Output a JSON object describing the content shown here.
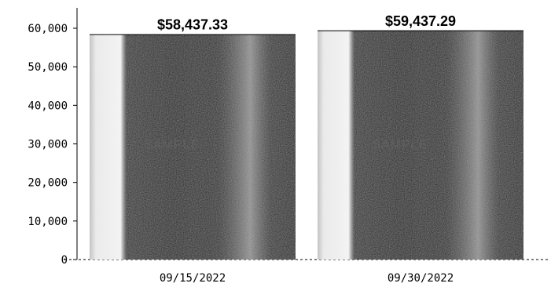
{
  "chart_data": {
    "type": "bar",
    "title": "",
    "xlabel": "",
    "ylabel": "",
    "categories": [
      "09/15/2022",
      "09/30/2022"
    ],
    "values": [
      58437.33,
      59437.29
    ],
    "data_labels": [
      "$58,437.33",
      "$59,437.29"
    ],
    "ylim": [
      0,
      60000
    ],
    "yticks": [
      0,
      10000,
      20000,
      30000,
      40000,
      50000,
      60000
    ],
    "ytick_labels": [
      "0",
      "10,000",
      "20,000",
      "30,000",
      "40,000",
      "50,000",
      "60,000"
    ],
    "grid": false,
    "legend": "none",
    "bar_fill": "#1a1a1a",
    "bar_highlight": "#e6e6e6",
    "bar_watermark": "SAMPLE"
  }
}
